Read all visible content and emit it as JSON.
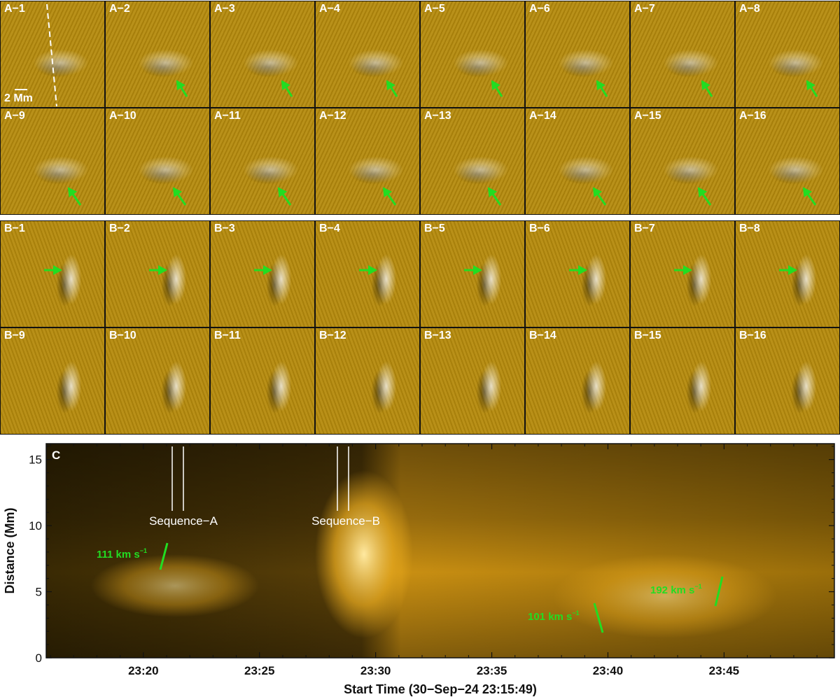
{
  "sequence_a": {
    "labels": [
      "A−1",
      "A−2",
      "A−3",
      "A−4",
      "A−5",
      "A−6",
      "A−7",
      "A−8",
      "A−9",
      "A−10",
      "A−11",
      "A−12",
      "A−13",
      "A−14",
      "A−15",
      "A−16"
    ],
    "scale_bar_label": "2 Mm"
  },
  "sequence_b": {
    "labels": [
      "B−1",
      "B−2",
      "B−3",
      "B−4",
      "B−5",
      "B−6",
      "B−7",
      "B−8",
      "B−9",
      "B−10",
      "B−11",
      "B−12",
      "B−13",
      "B−14",
      "B−15",
      "B−16"
    ]
  },
  "panel_c": {
    "label": "C",
    "ylabel": "Distance (Mm)",
    "xlabel": "Start Time (30−Sep−24 23:15:49)",
    "yticks": [
      "0",
      "5",
      "10",
      "15"
    ],
    "xticks": [
      "23:20",
      "23:25",
      "23:30",
      "23:35",
      "23:40",
      "23:45"
    ],
    "sequence_labels": [
      "Sequence−A",
      "Sequence−B"
    ],
    "speeds": [
      {
        "value": "111",
        "unit": "km s",
        "exp": "−1"
      },
      {
        "value": "101",
        "unit": "km s",
        "exp": "−1"
      },
      {
        "value": "192",
        "unit": "km s",
        "exp": "−1"
      }
    ]
  },
  "colors": {
    "accent": "#22dd22",
    "image_base": "#b58a0c"
  }
}
